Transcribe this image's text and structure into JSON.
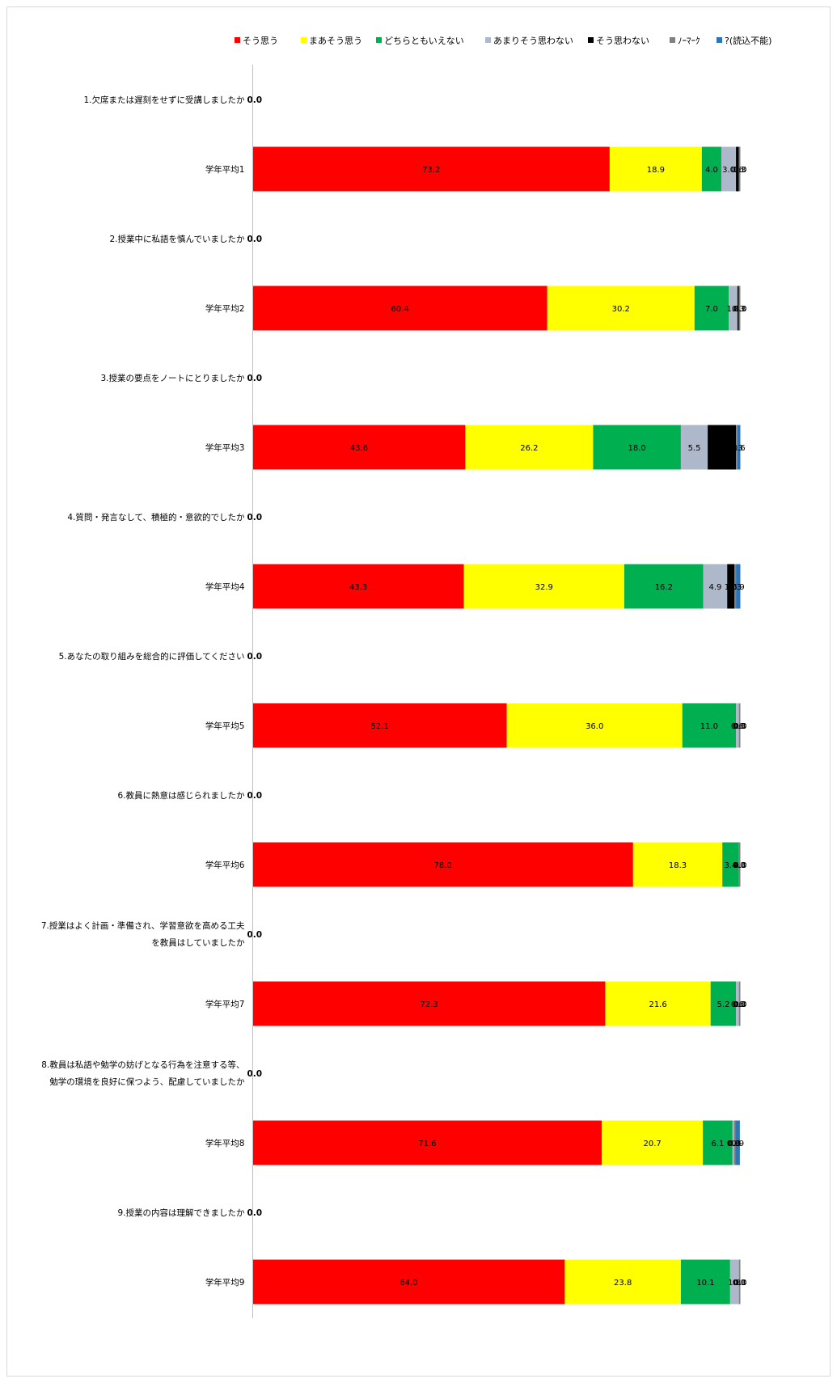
{
  "chart_data": {
    "type": "bar",
    "orientation": "horizontal",
    "stacked": true,
    "legend_position": "top",
    "grid": false,
    "xlim": [
      0,
      100
    ],
    "series": [
      {
        "name": "そう思う",
        "color": "#ff0000"
      },
      {
        "name": "まあそう思う",
        "color": "#ffff00"
      },
      {
        "name": "どちらともいえない",
        "color": "#00b050"
      },
      {
        "name": "あまりそう思わない",
        "color": "#adb9ca"
      },
      {
        "name": "そう思わない",
        "color": "#000000"
      },
      {
        "name": "ﾉｰﾏｰｸ",
        "color": "#808080"
      },
      {
        "name": "?(読込不能)",
        "color": "#2e75b6"
      }
    ],
    "categories": [
      {
        "label": [
          "1.欠席または遅刻をせずに受講しましたか"
        ],
        "values": [
          0,
          0,
          0,
          0,
          0,
          0,
          0
        ],
        "labels": [
          "0.0"
        ]
      },
      {
        "label": [
          "学年平均1"
        ],
        "values": [
          73.2,
          18.9,
          4.0,
          3.0,
          0.6,
          0.3,
          0.0
        ],
        "labels": [
          "73.2",
          "18.9",
          "4.0",
          "3.0",
          "0.6",
          "0.3",
          "0.0"
        ]
      },
      {
        "label": [
          "2.授業中に私語を慎んでいましたか"
        ],
        "values": [
          0,
          0,
          0,
          0,
          0,
          0,
          0
        ],
        "labels": [
          "0.0"
        ]
      },
      {
        "label": [
          "学年平均2"
        ],
        "values": [
          60.4,
          30.2,
          7.0,
          1.8,
          0.3,
          0.3,
          0.0
        ],
        "labels": [
          "60.4",
          "30.2",
          "7.0",
          "1.8",
          "0.3",
          "0.3",
          "0.0"
        ]
      },
      {
        "label": [
          "3.授業の要点をノートにとりましたか"
        ],
        "values": [
          0,
          0,
          0,
          0,
          0,
          0,
          0
        ],
        "labels": [
          "0.0"
        ]
      },
      {
        "label": [
          "学年平均3"
        ],
        "values": [
          43.6,
          26.2,
          18.0,
          5.5,
          5.8,
          0.3,
          0.6
        ],
        "labels": [
          "43.6",
          "26.2",
          "18.0",
          "5.5",
          "5.8",
          "0.3",
          "0.6"
        ]
      },
      {
        "label": [
          "4.質問・発言なして、積極的・意欲的でしたか"
        ],
        "values": [
          0,
          0,
          0,
          0,
          0,
          0,
          0
        ],
        "labels": [
          "0.0"
        ]
      },
      {
        "label": [
          "学年平均4"
        ],
        "values": [
          43.3,
          32.9,
          16.2,
          4.9,
          1.5,
          0.3,
          0.9
        ],
        "labels": [
          "43.3",
          "32.9",
          "16.2",
          "4.9",
          "1.5",
          "0.3",
          "0.9"
        ]
      },
      {
        "label": [
          "5.あなたの取り組みを総合的に評価してください"
        ],
        "values": [
          0,
          0,
          0,
          0,
          0,
          0,
          0
        ],
        "labels": [
          "0.0"
        ]
      },
      {
        "label": [
          "学年平均5"
        ],
        "values": [
          52.1,
          36.0,
          11.0,
          0.6,
          0.0,
          0.3,
          0.0
        ],
        "labels": [
          "52.1",
          "36.0",
          "11.0",
          "0.6",
          "0.0",
          "0.3",
          "0.0"
        ]
      },
      {
        "label": [
          "6.教員に熱意は感じられましたか"
        ],
        "values": [
          0,
          0,
          0,
          0,
          0,
          0,
          0
        ],
        "labels": [
          "0.0"
        ]
      },
      {
        "label": [
          "学年平均6"
        ],
        "values": [
          78.0,
          18.3,
          3.4,
          0.0,
          0.0,
          0.3,
          0.0
        ],
        "labels": [
          "78.0",
          "18.3",
          "3.4",
          "0.0",
          "0.0",
          "0.3",
          "0.0"
        ]
      },
      {
        "label": [
          "7.授業はよく計画・準備され、学習意欲を高める工夫",
          "を教員はしていましたか"
        ],
        "values": [
          0,
          0,
          0,
          0,
          0,
          0,
          0
        ],
        "labels": [
          "0.0"
        ]
      },
      {
        "label": [
          "学年平均7"
        ],
        "values": [
          72.3,
          21.6,
          5.2,
          0.6,
          0.0,
          0.3,
          0.0
        ],
        "labels": [
          "72.3",
          "21.6",
          "5.2",
          "0.6",
          "0.0",
          "0.3",
          "0.0"
        ]
      },
      {
        "label": [
          "8.教員は私語や勉学の妨げとなる行為を注意する等、",
          "勉学の環境を良好に保つよう、配慮していましたか"
        ],
        "values": [
          0,
          0,
          0,
          0,
          0,
          0,
          0
        ],
        "labels": [
          "0.0"
        ]
      },
      {
        "label": [
          "学年平均8"
        ],
        "values": [
          71.6,
          20.7,
          6.1,
          0.3,
          0.0,
          0.3,
          0.9
        ],
        "labels": [
          "71.6",
          "20.7",
          "6.1",
          "0.3",
          "0.0",
          "0.3",
          "0.9"
        ]
      },
      {
        "label": [
          "9.授業の内容は理解できましたか"
        ],
        "values": [
          0,
          0,
          0,
          0,
          0,
          0,
          0
        ],
        "labels": [
          "0.0"
        ]
      },
      {
        "label": [
          "学年平均9"
        ],
        "values": [
          64.0,
          23.8,
          10.1,
          1.8,
          0.0,
          0.3,
          0.0
        ],
        "labels": [
          "64.0",
          "23.8",
          "10.1",
          "1.8",
          "0.0",
          "0.3",
          "0.0"
        ]
      }
    ]
  }
}
